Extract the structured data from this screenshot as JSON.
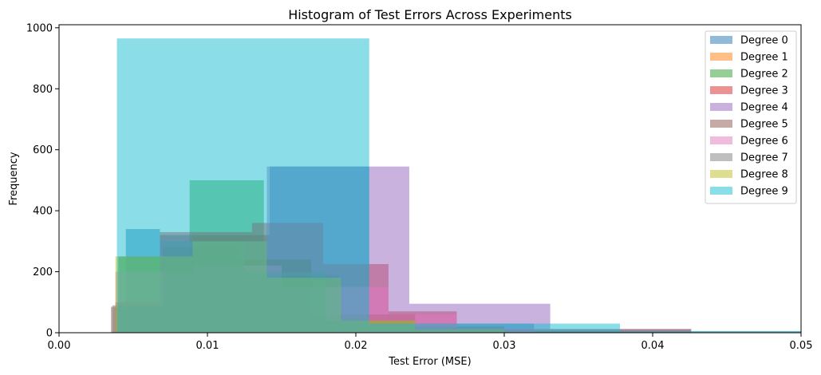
{
  "chart_data": {
    "type": "bar",
    "title": "Histogram of Test Errors Across Experiments",
    "xlabel": "Test Error (MSE)",
    "ylabel": "Frequency",
    "xlim": [
      0.0,
      0.05
    ],
    "ylim": [
      0,
      1010
    ],
    "xticks": [
      0.0,
      0.01,
      0.02,
      0.03,
      0.04,
      0.05
    ],
    "xtick_labels": [
      "0.00",
      "0.01",
      "0.02",
      "0.03",
      "0.04",
      "0.05"
    ],
    "yticks": [
      0,
      200,
      400,
      600,
      800,
      1000
    ],
    "ytick_labels": [
      "0",
      "200",
      "400",
      "600",
      "800",
      "1000"
    ],
    "grid": false,
    "legend_position": "top-right",
    "bar_alpha": 0.5,
    "series": [
      {
        "name": "Degree 0",
        "color": "#1f77b4",
        "bins": [
          [
            0.0045,
            0.0068,
            340
          ],
          [
            0.0068,
            0.0142,
            320
          ],
          [
            0.0142,
            0.0209,
            545
          ],
          [
            0.0209,
            0.032,
            30
          ],
          [
            0.032,
            0.05,
            5
          ]
        ]
      },
      {
        "name": "Degree 1",
        "color": "#ff7f0e",
        "bins": [
          [
            0.004,
            0.009,
            250
          ],
          [
            0.009,
            0.014,
            320
          ],
          [
            0.014,
            0.019,
            170
          ],
          [
            0.019,
            0.024,
            40
          ],
          [
            0.024,
            0.03,
            10
          ]
        ]
      },
      {
        "name": "Degree 2",
        "color": "#2ca02c",
        "bins": [
          [
            0.004,
            0.0088,
            250
          ],
          [
            0.0088,
            0.0138,
            500
          ],
          [
            0.0138,
            0.0188,
            190
          ],
          [
            0.0188,
            0.0238,
            40
          ],
          [
            0.0238,
            0.03,
            10
          ]
        ]
      },
      {
        "name": "Degree 3",
        "color": "#d62728",
        "bins": [
          [
            0.0038,
            0.0068,
            100
          ],
          [
            0.0068,
            0.013,
            330
          ],
          [
            0.013,
            0.0178,
            360
          ],
          [
            0.0178,
            0.0222,
            225
          ],
          [
            0.0222,
            0.0268,
            70
          ],
          [
            0.0268,
            0.032,
            10
          ]
        ]
      },
      {
        "name": "Degree 4",
        "color": "#9467bd",
        "bins": [
          [
            0.004,
            0.0068,
            80
          ],
          [
            0.0068,
            0.014,
            300
          ],
          [
            0.014,
            0.0236,
            545
          ],
          [
            0.0236,
            0.0331,
            95
          ],
          [
            0.0331,
            0.0426,
            12
          ]
        ]
      },
      {
        "name": "Degree 5",
        "color": "#8c564b",
        "bins": [
          [
            0.0035,
            0.007,
            85
          ],
          [
            0.007,
            0.012,
            280
          ],
          [
            0.012,
            0.017,
            240
          ],
          [
            0.017,
            0.024,
            60
          ],
          [
            0.024,
            0.03,
            20
          ],
          [
            0.03,
            0.0426,
            12
          ]
        ]
      },
      {
        "name": "Degree 6",
        "color": "#e377c2",
        "bins": [
          [
            0.0038,
            0.009,
            200
          ],
          [
            0.009,
            0.015,
            220
          ],
          [
            0.015,
            0.0222,
            150
          ],
          [
            0.0222,
            0.0268,
            60
          ],
          [
            0.0268,
            0.032,
            15
          ]
        ]
      },
      {
        "name": "Degree 7",
        "color": "#7f7f7f",
        "bins": [
          [
            0.0036,
            0.007,
            90
          ],
          [
            0.007,
            0.0125,
            300
          ],
          [
            0.0125,
            0.018,
            200
          ],
          [
            0.018,
            0.024,
            40
          ],
          [
            0.024,
            0.03,
            10
          ]
        ]
      },
      {
        "name": "Degree 8",
        "color": "#bcbd22",
        "bins": [
          [
            0.0038,
            0.009,
            250
          ],
          [
            0.009,
            0.014,
            300
          ],
          [
            0.014,
            0.019,
            180
          ],
          [
            0.019,
            0.024,
            40
          ],
          [
            0.024,
            0.03,
            10
          ]
        ]
      },
      {
        "name": "Degree 9",
        "color": "#17becf",
        "bins": [
          [
            0.0039,
            0.0209,
            965
          ],
          [
            0.0209,
            0.0378,
            30
          ],
          [
            0.0378,
            0.05,
            5
          ]
        ]
      }
    ]
  }
}
